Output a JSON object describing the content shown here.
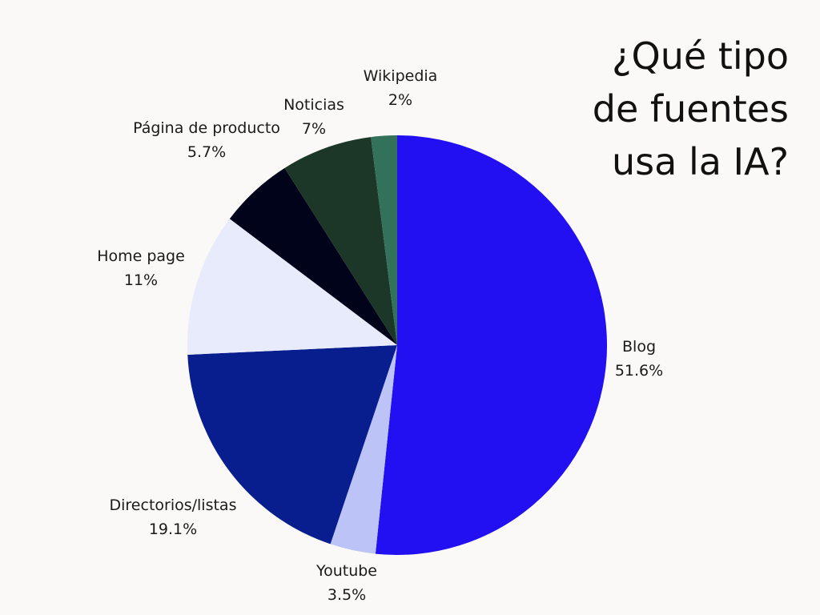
{
  "chart_data": {
    "type": "pie",
    "title_lines": [
      "¿Qué tipo",
      "de fuentes",
      "usa la IA?"
    ],
    "slices": [
      {
        "label": "Blog",
        "value": 51.6,
        "value_label": "51.6%",
        "color": "#2210f2"
      },
      {
        "label": "Youtube",
        "value": 3.5,
        "value_label": "3.5%",
        "color": "#bcc4f7"
      },
      {
        "label": "Directorios/listas",
        "value": 19.1,
        "value_label": "19.1%",
        "color": "#091e8e"
      },
      {
        "label": "Home page",
        "value": 11,
        "value_label": "11%",
        "color": "#e7ebfb"
      },
      {
        "label": "Página de producto",
        "value": 5.7,
        "value_label": "5.7%",
        "color": "#00031a"
      },
      {
        "label": "Noticias",
        "value": 7,
        "value_label": "7%",
        "color": "#1c3627"
      },
      {
        "label": "Wikipedia",
        "value": 2,
        "value_label": "2%",
        "color": "#33725a"
      }
    ],
    "start_angle": "12 o'clock",
    "direction": "clockwise",
    "legend": "none"
  }
}
